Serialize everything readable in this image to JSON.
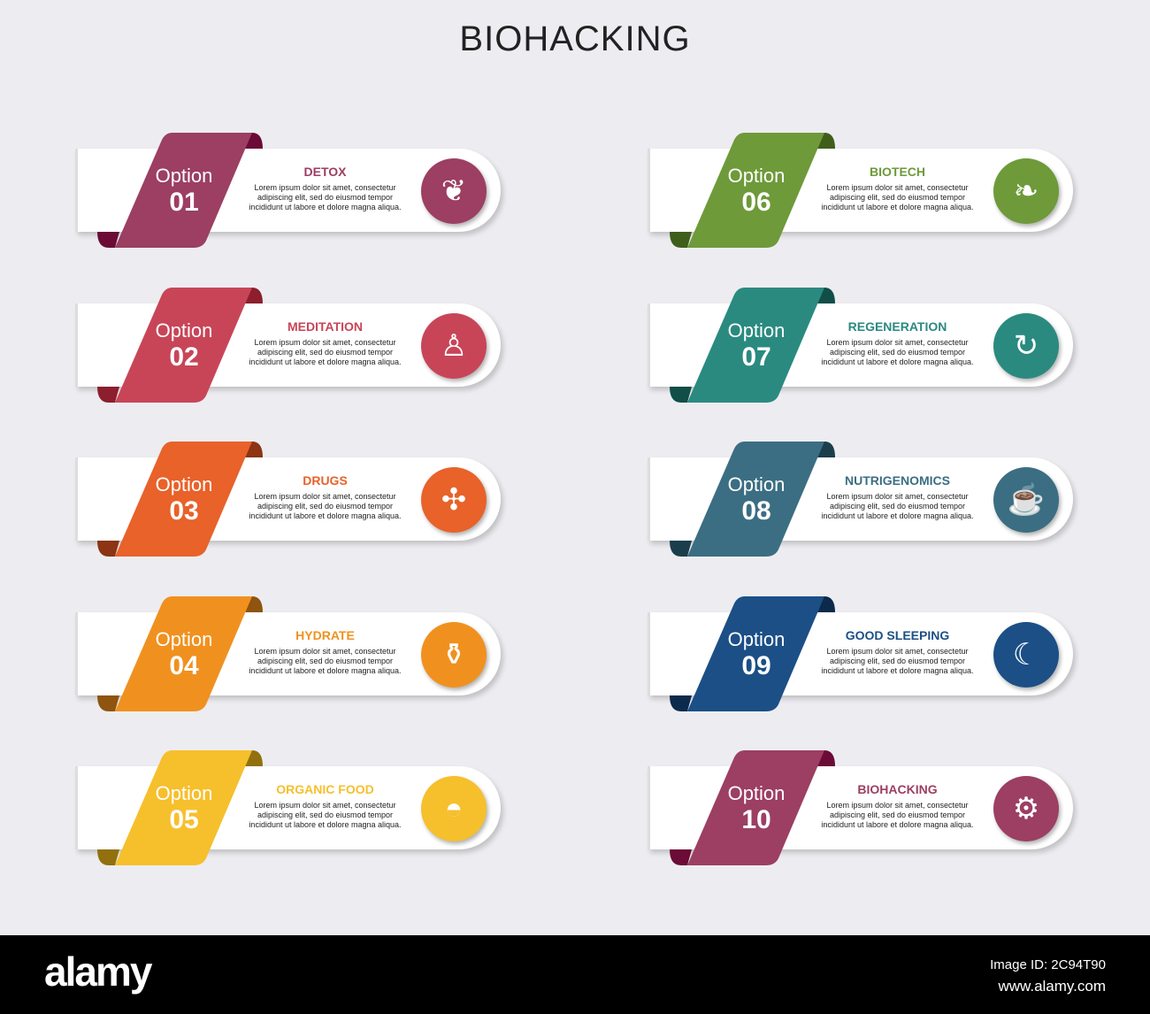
{
  "title": "BIOHACKING",
  "body_text": [
    "Lorem ipsum dolor sit amet, consectetur",
    "adipiscing elit, sed do eiusmod tempor",
    "incididunt ut labore et dolore magna aliqua."
  ],
  "option_word": "Option",
  "items": [
    {
      "num": "01",
      "title": "DETOX",
      "color": "#9c3f62",
      "dark": "#6b0b36",
      "icon": "body-leaf-icon",
      "glyph": "❦"
    },
    {
      "num": "02",
      "title": "MEDITATION",
      "color": "#c84558",
      "dark": "#8c1e2e",
      "icon": "meditation-icon",
      "glyph": "♙"
    },
    {
      "num": "03",
      "title": "DRUGS",
      "color": "#e8622a",
      "dark": "#8c3414",
      "icon": "cannabis-syringe-icon",
      "glyph": "✣"
    },
    {
      "num": "04",
      "title": "HYDRATE",
      "color": "#f0911f",
      "dark": "#8e5410",
      "icon": "water-bottle-icon",
      "glyph": "⚱"
    },
    {
      "num": "05",
      "title": "ORGANIC FOOD",
      "color": "#f6bf2c",
      "dark": "#92700e",
      "icon": "salad-bowl-icon",
      "glyph": "◓"
    },
    {
      "num": "06",
      "title": "BIOTECH",
      "color": "#6e9a3a",
      "dark": "#3f5e1c",
      "icon": "biotech-leaf-icon",
      "glyph": "❧"
    },
    {
      "num": "07",
      "title": "REGENERATION",
      "color": "#2a8a80",
      "dark": "#114e48",
      "icon": "regeneration-icon",
      "glyph": "↻"
    },
    {
      "num": "08",
      "title": "NUTRIGENOMICS",
      "color": "#3b6e82",
      "dark": "#1c3e4c",
      "icon": "burger-apple-icon",
      "glyph": "☕"
    },
    {
      "num": "09",
      "title": "GOOD SLEEPING",
      "color": "#1b4f86",
      "dark": "#0c2a4c",
      "icon": "sleeping-bed-icon",
      "glyph": "☾"
    },
    {
      "num": "10",
      "title": "BIOHACKING",
      "color": "#9c3f62",
      "dark": "#6b0b36",
      "icon": "head-gear-icon",
      "glyph": "⚙"
    }
  ],
  "footer": {
    "logo": "alamy",
    "image_id": "Image ID: 2C94T90",
    "url": "www.alamy.com"
  }
}
